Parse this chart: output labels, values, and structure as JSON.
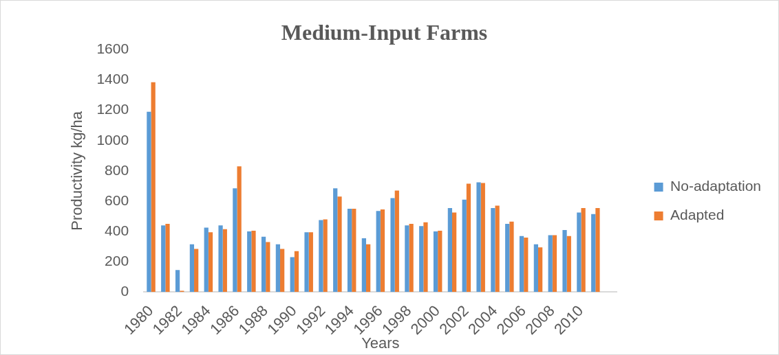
{
  "chart_data": {
    "type": "bar",
    "title": "Medium-Input Farms",
    "xlabel": "Years",
    "ylabel": "Productivity kg/ha",
    "categories": [
      "1980",
      null,
      "1982",
      null,
      "1984",
      null,
      "1986",
      null,
      "1988",
      null,
      "1990",
      null,
      "1992",
      null,
      "1994",
      null,
      "1996",
      null,
      "1998",
      null,
      "2000",
      null,
      "2002",
      null,
      "2004",
      null,
      "2006",
      null,
      "2008",
      null,
      "2010",
      null,
      null
    ],
    "series": [
      {
        "name": "No-adaptation",
        "color": "#5b9bd5",
        "values": [
          1190,
          440,
          145,
          315,
          425,
          440,
          685,
          400,
          365,
          315,
          230,
          395,
          475,
          685,
          550,
          355,
          535,
          620,
          440,
          435,
          400,
          555,
          610,
          725,
          555,
          450,
          370,
          315,
          375,
          410,
          525,
          515,
          null
        ]
      },
      {
        "name": "Adapted",
        "color": "#ed7d31",
        "values": [
          1385,
          450,
          8,
          285,
          395,
          415,
          830,
          405,
          330,
          285,
          270,
          395,
          480,
          630,
          550,
          315,
          545,
          670,
          450,
          460,
          405,
          525,
          715,
          720,
          570,
          465,
          360,
          295,
          375,
          370,
          555,
          555,
          null
        ]
      }
    ],
    "ylim": [
      0,
      1600
    ],
    "yticks": [
      0,
      200,
      400,
      600,
      800,
      1000,
      1200,
      1400,
      1600
    ],
    "grid": false,
    "legend": "right"
  }
}
